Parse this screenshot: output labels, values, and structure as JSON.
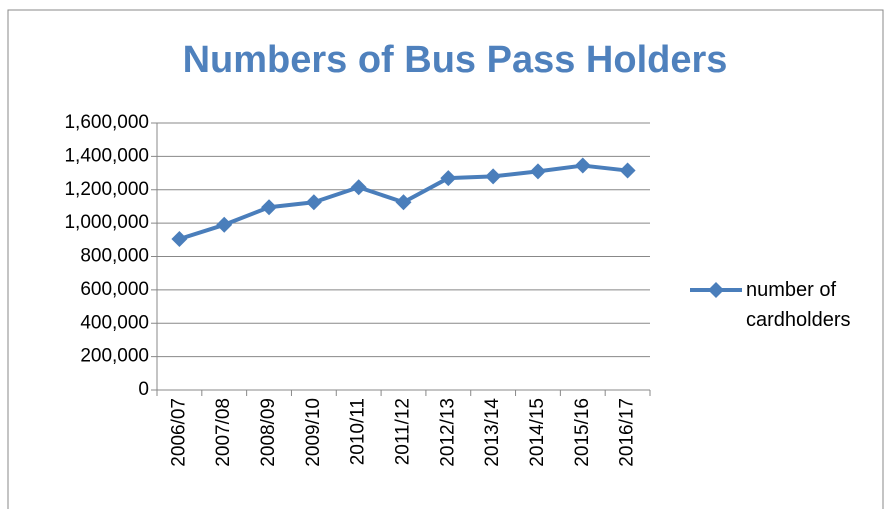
{
  "chart_data": {
    "type": "line",
    "title": "Numbers of Bus Pass Holders",
    "categories": [
      "2006/07",
      "2007/08",
      "2008/09",
      "2009/10",
      "2010/11",
      "2011/12",
      "2012/13",
      "2013/14",
      "2014/15",
      "2015/16",
      "2016/17"
    ],
    "series": [
      {
        "name": "number of cardholders",
        "color": "#4a7ebb",
        "values": [
          905000,
          990000,
          1095000,
          1125000,
          1215000,
          1125000,
          1270000,
          1280000,
          1310000,
          1345000,
          1315000
        ]
      }
    ],
    "ylim": [
      0,
      1600000
    ],
    "yticks": [
      0,
      {
        "value": 200000,
        "label": "200,000"
      },
      {
        "value": 400000,
        "label": "400,000"
      },
      {
        "value": 600000,
        "label": "600,000"
      },
      {
        "value": 800000,
        "label": "800,000"
      },
      {
        "value": 1000000,
        "label": "1,000,000"
      },
      {
        "value": 1200000,
        "label": "1,200,000"
      },
      {
        "value": 1400000,
        "label": "1,400,000"
      },
      {
        "value": 1600000,
        "label": "1,600,000"
      }
    ],
    "grid": true,
    "legend": "right"
  }
}
